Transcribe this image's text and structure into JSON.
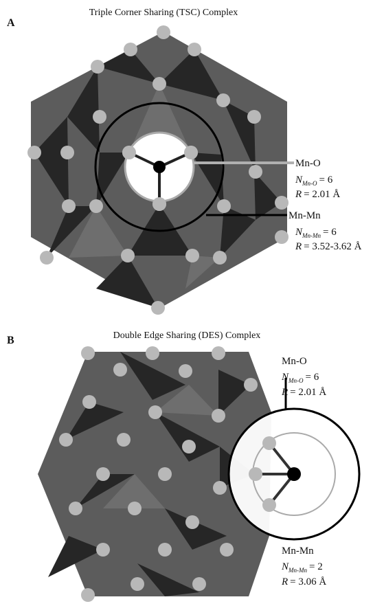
{
  "panels": [
    {
      "label": "A",
      "title": "Triple Corner Sharing (TSC) Complex",
      "annotations": [
        {
          "label": "Mn-O",
          "n_symbol": "N",
          "n_subscript": "Mn-O",
          "n_value": "= 6",
          "r_symbol": "R",
          "r_value": "= 2.01 Å"
        },
        {
          "label": "Mn-Mn",
          "n_symbol": "N",
          "n_subscript": "Mn-Mn",
          "n_value": "= 6",
          "r_symbol": "R",
          "r_value": "= 3.52-3.62 Å"
        }
      ]
    },
    {
      "label": "B",
      "title": "Double Edge Sharing (DES) Complex",
      "annotations": [
        {
          "label": "Mn-O",
          "n_symbol": "N",
          "n_subscript": "Mn-O",
          "n_value": "= 6",
          "r_symbol": "R",
          "r_value": "= 2.01 Å"
        },
        {
          "label": "Mn-Mn",
          "n_symbol": "N",
          "n_subscript": "Mn-Mn",
          "n_value": "= 2",
          "r_symbol": "R",
          "r_value": "= 3.06 Å"
        }
      ]
    }
  ]
}
